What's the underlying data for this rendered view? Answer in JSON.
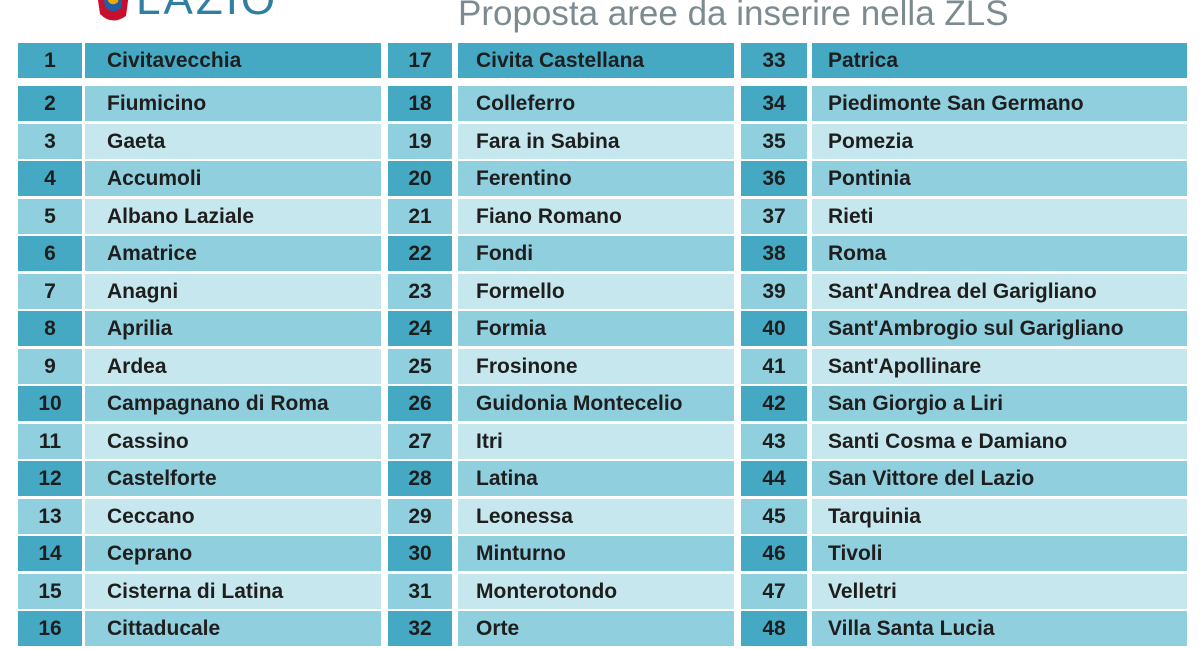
{
  "header": {
    "brand": "LAZIO",
    "title": "Proposta aree da inserire nella ZLS",
    "logo_colors": [
      "#c8102e",
      "#f2a900",
      "#1f5fa8"
    ]
  },
  "colors": {
    "header_cell": "#46a9c4",
    "mid_band": "#8fcfde",
    "light_band": "#c7e7ef"
  },
  "table": {
    "rows": [
      [
        [
          "1",
          "Civitavecchia"
        ],
        [
          "17",
          "Civita Castellana"
        ],
        [
          "33",
          "Patrica"
        ]
      ],
      [
        [
          "2",
          "Fiumicino"
        ],
        [
          "18",
          "Colleferro"
        ],
        [
          "34",
          "Piedimonte San Germano"
        ]
      ],
      [
        [
          "3",
          "Gaeta"
        ],
        [
          "19",
          "Fara in Sabina"
        ],
        [
          "35",
          "Pomezia"
        ]
      ],
      [
        [
          "4",
          "Accumoli"
        ],
        [
          "20",
          "Ferentino"
        ],
        [
          "36",
          "Pontinia"
        ]
      ],
      [
        [
          "5",
          "Albano Laziale"
        ],
        [
          "21",
          "Fiano Romano"
        ],
        [
          "37",
          "Rieti"
        ]
      ],
      [
        [
          "6",
          "Amatrice"
        ],
        [
          "22",
          "Fondi"
        ],
        [
          "38",
          "Roma"
        ]
      ],
      [
        [
          "7",
          "Anagni"
        ],
        [
          "23",
          "Formello"
        ],
        [
          "39",
          "Sant'Andrea del Garigliano"
        ]
      ],
      [
        [
          "8",
          "Aprilia"
        ],
        [
          "24",
          "Formia"
        ],
        [
          "40",
          "Sant'Ambrogio sul Garigliano"
        ]
      ],
      [
        [
          "9",
          "Ardea"
        ],
        [
          "25",
          "Frosinone"
        ],
        [
          "41",
          "Sant'Apollinare"
        ]
      ],
      [
        [
          "10",
          "Campagnano di Roma"
        ],
        [
          "26",
          "Guidonia Montecelio"
        ],
        [
          "42",
          "San Giorgio a Liri"
        ]
      ],
      [
        [
          "11",
          "Cassino"
        ],
        [
          "27",
          "Itri"
        ],
        [
          "43",
          "Santi Cosma e Damiano"
        ]
      ],
      [
        [
          "12",
          "Castelforte"
        ],
        [
          "28",
          "Latina"
        ],
        [
          "44",
          "San Vittore del Lazio"
        ]
      ],
      [
        [
          "13",
          "Ceccano"
        ],
        [
          "29",
          "Leonessa"
        ],
        [
          "45",
          "Tarquinia"
        ]
      ],
      [
        [
          "14",
          "Ceprano"
        ],
        [
          "30",
          "Minturno"
        ],
        [
          "46",
          "Tivoli"
        ]
      ],
      [
        [
          "15",
          "Cisterna di Latina"
        ],
        [
          "31",
          "Monterotondo"
        ],
        [
          "47",
          "Velletri"
        ]
      ],
      [
        [
          "16",
          "Cittaducale"
        ],
        [
          "32",
          "Orte"
        ],
        [
          "48",
          "Villa Santa Lucia"
        ]
      ]
    ]
  }
}
